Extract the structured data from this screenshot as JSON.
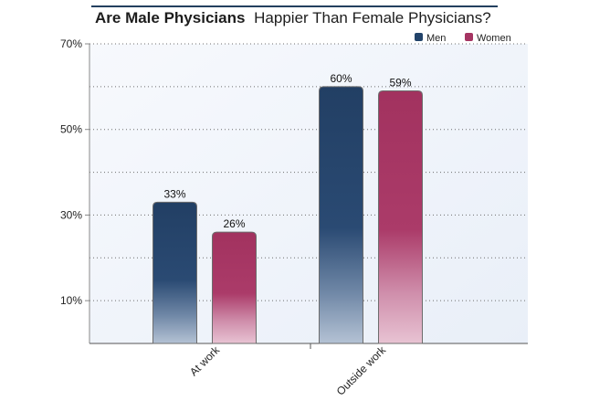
{
  "chart_data": {
    "type": "bar",
    "title_bold": "Are Male Physicians",
    "title_rest": "Happier Than Female Physicians?",
    "categories": [
      "At work",
      "Outside work"
    ],
    "series": [
      {
        "name": "Men",
        "values": [
          33,
          60
        ],
        "labels": [
          "33%",
          "60%"
        ]
      },
      {
        "name": "Women",
        "values": [
          26,
          59
        ],
        "labels": [
          "26%",
          "59%"
        ]
      }
    ],
    "y_ticks": [
      {
        "value": 10,
        "label": "10%"
      },
      {
        "value": 30,
        "label": "30%"
      },
      {
        "value": 50,
        "label": "50%"
      },
      {
        "value": 70,
        "label": "70%"
      }
    ],
    "ylim": [
      0,
      70
    ],
    "grid": true,
    "legend_position": "top-right",
    "colors": {
      "Men": "#22436a",
      "Women": "#a53462"
    }
  }
}
